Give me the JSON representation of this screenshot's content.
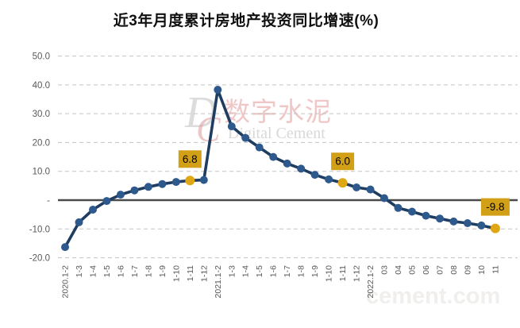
{
  "chart": {
    "title": "近3年月度累计房地产投资同比增速(%)"
  },
  "watermark": {
    "logo_d": "D",
    "logo_c": "C",
    "chinese": "数字水泥",
    "english": "Digital Cement",
    "url": "cement.com"
  },
  "chart_data": {
    "type": "line",
    "title": "近3年月度累计房地产投资同比增速(%)",
    "categories": [
      "2020.1-2",
      "1-3",
      "1-4",
      "1-5",
      "1-6",
      "1-7",
      "1-8",
      "1-9",
      "1-10",
      "1-11",
      "1-12",
      "2021.1-2",
      "1-3",
      "1-4",
      "1-5",
      "1-6",
      "1-7",
      "1-8",
      "1-9",
      "1-10",
      "1-11",
      "1-12",
      "2022.1-2",
      "03",
      "04",
      "05",
      "06",
      "07",
      "08",
      "09",
      "10",
      "11"
    ],
    "values": [
      -16.3,
      -7.7,
      -3.3,
      -0.3,
      1.9,
      3.4,
      4.6,
      5.6,
      6.3,
      6.8,
      7.0,
      38.3,
      25.6,
      21.6,
      18.3,
      15.0,
      12.7,
      10.9,
      8.8,
      7.2,
      6.0,
      4.4,
      3.7,
      0.7,
      -2.7,
      -4.0,
      -5.4,
      -6.4,
      -7.4,
      -8.0,
      -8.8,
      -9.8
    ],
    "ylim": [
      -20,
      50
    ],
    "y_ticks": [
      {
        "value": 50,
        "label": "50.0"
      },
      {
        "value": 40,
        "label": "40.0"
      },
      {
        "value": 30,
        "label": "30.0"
      },
      {
        "value": 20,
        "label": "20.0"
      },
      {
        "value": 10,
        "label": "10.0"
      },
      {
        "value": 0,
        "label": "-"
      },
      {
        "value": -10,
        "label": "-10.0"
      },
      {
        "value": -20,
        "label": "-20.0"
      }
    ],
    "grid": "horizontal-dashed",
    "legend": "none",
    "line_color": "#1f3c61",
    "marker_color": "#2e598c",
    "highlight_color": "#dfa713",
    "label_box_color": "#d2a017",
    "axis_text_color": "#595959",
    "zero_line_color": "#4a4a4a",
    "gridline_color": "#c3c3c3",
    "annotations": [
      {
        "index": 9,
        "category": "1-11",
        "value": 6.8,
        "label": "6.8"
      },
      {
        "index": 20,
        "category": "1-11",
        "value": 6.0,
        "label": "6.0"
      },
      {
        "index": 31,
        "category": "11",
        "value": -9.8,
        "label": "-9.8"
      }
    ]
  }
}
